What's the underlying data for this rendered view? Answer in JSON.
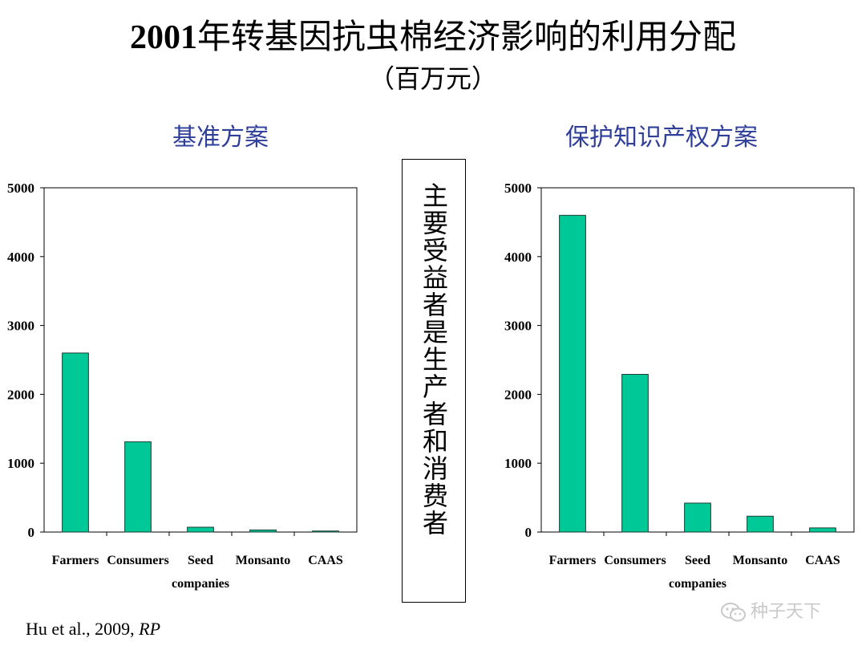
{
  "header": {
    "title_year": "2001",
    "title_text": "年转基因抗虫棉经济影响的利用分配",
    "subtitle": "（百万元）"
  },
  "note": "主要受益者是生产者和消费者",
  "citation": {
    "authors": "Hu et al., 2009, ",
    "journal": "RP"
  },
  "watermark": {
    "icon": "wechat-icon",
    "text": "种子天下"
  },
  "colors": {
    "bar": "#00c896",
    "bar_stroke": "#1b3d33",
    "chart_title": "#2e3f9a"
  },
  "chart_data": [
    {
      "type": "bar",
      "title": "基准方案",
      "categories": [
        [
          "Farmers"
        ],
        [
          "Consumers"
        ],
        [
          "Seed",
          "companies"
        ],
        [
          "Monsanto"
        ],
        [
          "CAAS"
        ]
      ],
      "values": [
        2600,
        1310,
        70,
        30,
        15
      ],
      "ylim": [
        0,
        5000
      ],
      "yticks": [
        0,
        1000,
        2000,
        3000,
        4000,
        5000
      ],
      "xlabel": "",
      "ylabel": "",
      "grid": false
    },
    {
      "type": "bar",
      "title": "保护知识产权方案",
      "categories": [
        [
          "Farmers"
        ],
        [
          "Consumers"
        ],
        [
          "Seed",
          "companies"
        ],
        [
          "Monsanto"
        ],
        [
          "CAAS"
        ]
      ],
      "values": [
        4600,
        2290,
        420,
        230,
        60
      ],
      "ylim": [
        0,
        5000
      ],
      "yticks": [
        0,
        1000,
        2000,
        3000,
        4000,
        5000
      ],
      "xlabel": "",
      "ylabel": "",
      "grid": false
    }
  ]
}
